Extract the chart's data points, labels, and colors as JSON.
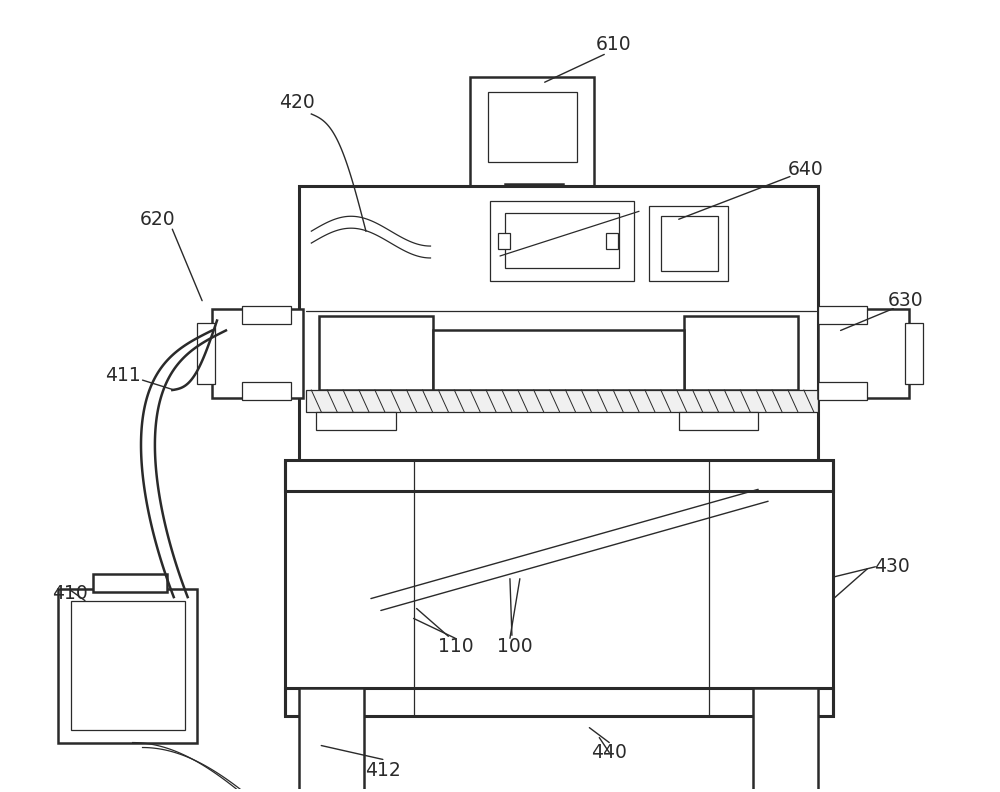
{
  "bg_color": "#ffffff",
  "line_color": "#2a2a2a",
  "lw_main": 1.8,
  "lw_thin": 0.9,
  "lw_thick": 2.2,
  "lw_annotation": 1.0,
  "font_size": 13.5
}
